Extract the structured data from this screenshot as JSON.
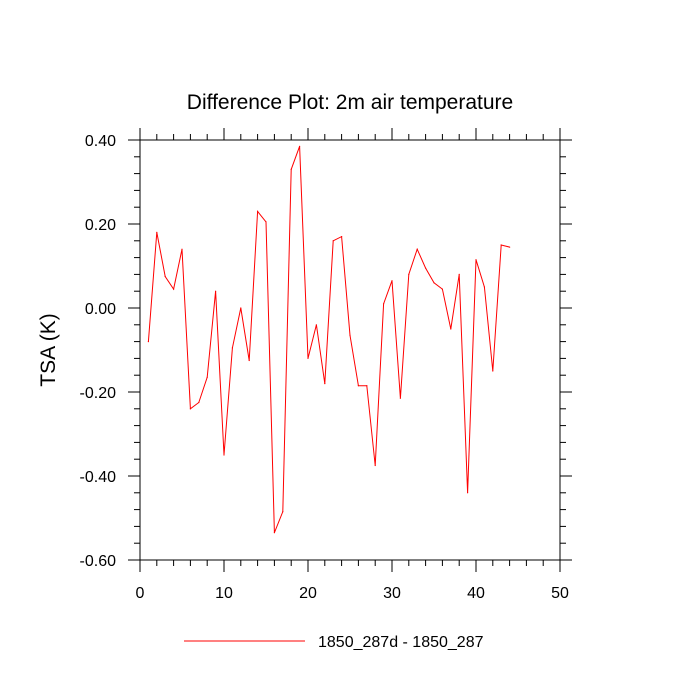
{
  "chart_data": {
    "type": "line",
    "title": "Difference Plot: 2m air temperature",
    "xlabel": "",
    "ylabel": "TSA  (K)",
    "xlim": [
      0,
      50
    ],
    "ylim": [
      -0.6,
      0.4
    ],
    "xticks": [
      0,
      10,
      20,
      30,
      40,
      50
    ],
    "xtick_labels": [
      "0",
      "10",
      "20",
      "30",
      "40",
      "50"
    ],
    "yticks": [
      -0.6,
      -0.4,
      -0.2,
      0.0,
      0.2,
      0.4
    ],
    "ytick_labels": [
      "-0.60",
      "-0.40",
      "-0.20",
      "0.00",
      "0.20",
      "0.40"
    ],
    "grid": false,
    "legend_position": "bottom",
    "series": [
      {
        "name": "1850_287d - 1850_287",
        "color": "#ff0000",
        "x": [
          1,
          2,
          3,
          4,
          5,
          6,
          7,
          8,
          9,
          10,
          11,
          12,
          13,
          14,
          15,
          16,
          17,
          18,
          19,
          20,
          21,
          22,
          23,
          24,
          25,
          26,
          27,
          28,
          29,
          30,
          31,
          32,
          33,
          34,
          35,
          36,
          37,
          38,
          39,
          40,
          41,
          42,
          43,
          44
        ],
        "values": [
          -0.08,
          0.18,
          0.075,
          0.045,
          0.14,
          -0.24,
          -0.225,
          -0.165,
          0.04,
          -0.35,
          -0.095,
          0.0,
          -0.125,
          0.23,
          0.205,
          -0.535,
          -0.485,
          0.33,
          0.385,
          -0.12,
          -0.04,
          -0.18,
          0.16,
          0.17,
          -0.065,
          -0.185,
          -0.185,
          -0.375,
          0.01,
          0.065,
          -0.215,
          0.08,
          0.14,
          0.095,
          0.06,
          0.045,
          -0.05,
          0.08,
          -0.44,
          0.115,
          0.05,
          -0.15,
          0.15,
          0.145
        ]
      }
    ]
  }
}
